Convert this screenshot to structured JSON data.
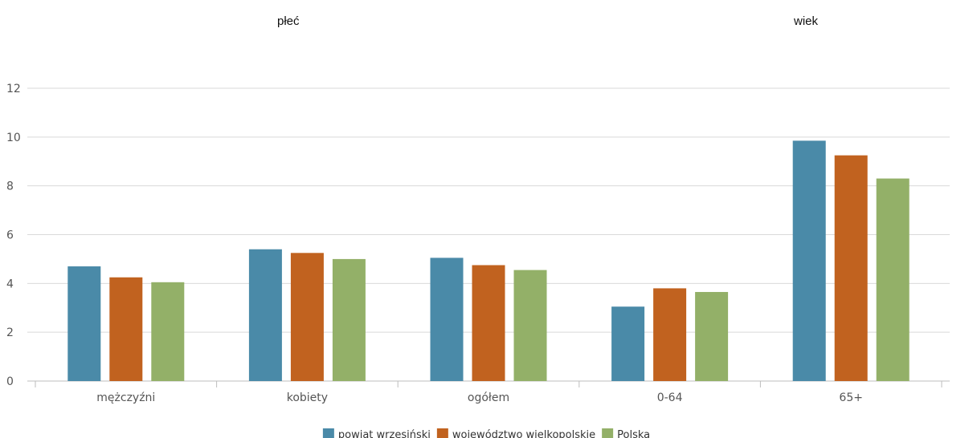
{
  "headers": {
    "left": "płeć",
    "right": "wiek"
  },
  "chart_data": {
    "type": "bar",
    "title": "",
    "xlabel": "",
    "ylabel": "",
    "ylim": [
      0,
      12
    ],
    "yticks": [
      0,
      2,
      4,
      6,
      8,
      10,
      12
    ],
    "grid": true,
    "legend_position": "bottom",
    "categories": [
      "mężczyźni",
      "kobiety",
      "ogółem",
      "0-64",
      "65+"
    ],
    "series": [
      {
        "name": "powiat wrzesiński",
        "color": "#4a8aa8",
        "values": [
          4.7,
          5.4,
          5.05,
          3.05,
          9.85
        ]
      },
      {
        "name": "województwo wielkopolskie",
        "color": "#c1621f",
        "values": [
          4.25,
          5.25,
          4.75,
          3.8,
          9.25
        ]
      },
      {
        "name": "Polska",
        "color": "#93b068",
        "values": [
          4.05,
          5.0,
          4.55,
          3.65,
          8.3
        ]
      }
    ]
  }
}
